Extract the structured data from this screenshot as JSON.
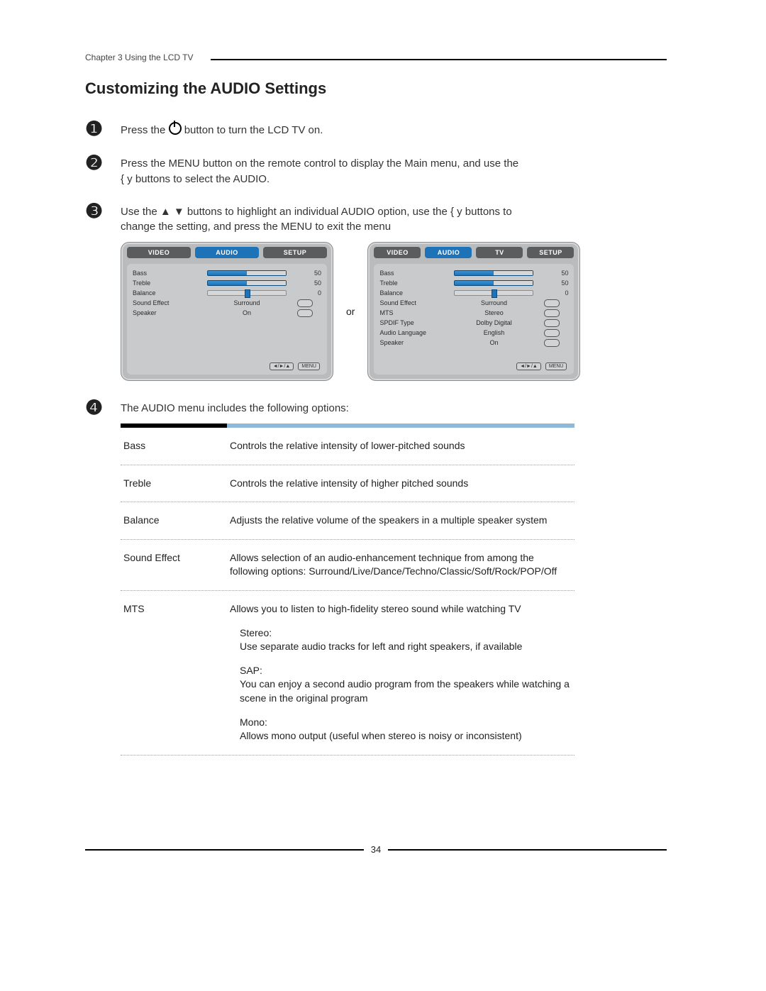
{
  "header": {
    "chapter": "Chapter 3 Using the LCD TV"
  },
  "title": "Customizing the AUDIO Settings",
  "steps": {
    "s1": {
      "num": "❶",
      "before": "Press the ",
      "after": " button to turn the LCD TV on."
    },
    "s2": {
      "num": "❷",
      "line1": "Press the MENU button on the remote control to display the Main menu, and use the",
      "line2": "  { y    buttons to select the AUDIO."
    },
    "s3": {
      "num": "❸",
      "line1": "Use the  ▲ ▼ buttons to highlight an individual AUDIO option, use the  { y   buttons to",
      "line2": "change the setting, and press the MENU to exit the menu"
    },
    "s4": {
      "num": "❹",
      "intro": "The AUDIO menu includes the following options:"
    }
  },
  "or_label": "or",
  "osd_left": {
    "tabs": [
      "VIDEO",
      "AUDIO",
      "SETUP"
    ],
    "active_index": 1,
    "colors": {
      "tab_active": "#1e73b8"
    },
    "rows": [
      {
        "label": "Bass",
        "type": "slider_half",
        "value": "50"
      },
      {
        "label": "Treble",
        "type": "slider_half",
        "value": "50"
      },
      {
        "label": "Balance",
        "type": "slider_balance",
        "value": "0"
      },
      {
        "label": "Sound Effect",
        "type": "text",
        "text": "Surround"
      },
      {
        "label": "Speaker",
        "type": "text",
        "text": "On"
      }
    ],
    "foot": [
      "◄/►/▲",
      "MENU"
    ]
  },
  "osd_right": {
    "tabs": [
      "VIDEO",
      "AUDIO",
      "TV",
      "SETUP"
    ],
    "active_index": 1,
    "rows": [
      {
        "label": "Bass",
        "type": "slider_half",
        "value": "50"
      },
      {
        "label": "Treble",
        "type": "slider_half",
        "value": "50"
      },
      {
        "label": "Balance",
        "type": "slider_balance",
        "value": "0"
      },
      {
        "label": "Sound Effect",
        "type": "text",
        "text": "Surround"
      },
      {
        "label": "MTS",
        "type": "text",
        "text": "Stereo"
      },
      {
        "label": "SPDIF Type",
        "type": "text",
        "text": "Dolby Digital"
      },
      {
        "label": "Audio Language",
        "type": "text",
        "text": "English"
      },
      {
        "label": "Speaker",
        "type": "text",
        "text": "On"
      }
    ],
    "foot": [
      "◄/►/▲",
      "MENU"
    ]
  },
  "options_table": [
    {
      "name": "Bass",
      "desc": "Controls the relative intensity of lower-pitched sounds"
    },
    {
      "name": "Treble",
      "desc": "Controls the relative intensity of higher pitched sounds"
    },
    {
      "name": "Balance",
      "desc": "Adjusts the relative volume of the speakers in a multiple speaker system"
    },
    {
      "name": "Sound Effect",
      "desc": "Allows selection of an audio-enhancement technique from among the following options: Surround/Live/Dance/Techno/Classic/Soft/Rock/POP/Off"
    },
    {
      "name": "MTS",
      "desc": "Allows you to listen to high-fidelity stereo sound while watching TV",
      "subs": [
        {
          "h": "Stereo:",
          "t": "Use separate audio tracks for left and right speakers, if available"
        },
        {
          "h": "SAP:",
          "t": "You can enjoy a second audio program from the speakers while watching a scene in the original program"
        },
        {
          "h": "Mono:",
          "t": "Allows mono output (useful when stereo is noisy or inconsistent)"
        }
      ]
    }
  ],
  "page_number": "34"
}
